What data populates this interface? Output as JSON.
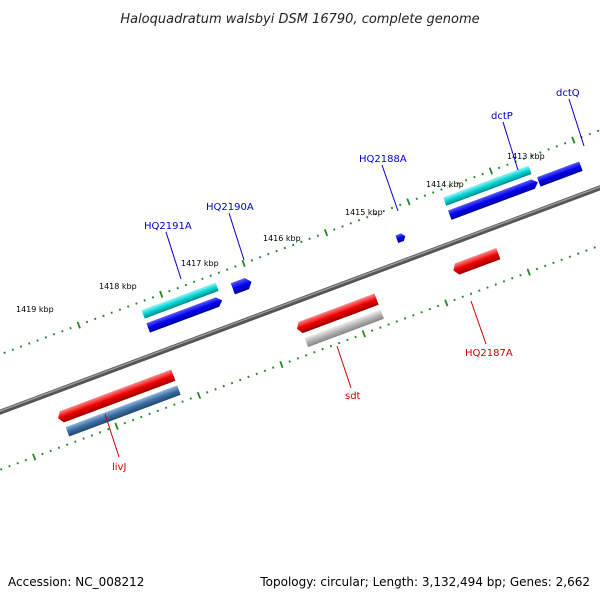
{
  "title": "Haloquadratum walsbyi DSM 16790, complete genome",
  "footer": {
    "accession": "Accession: NC_008212",
    "summary": "Topology: circular; Length: 3,132,494 bp; Genes: 2,662"
  },
  "scale_labels": [
    "1419 kbp",
    "1418 kbp",
    "1417 kbp",
    "1416 kbp",
    "1415 kbp",
    "1414 kbp",
    "1413 kbp"
  ],
  "gene_labels": {
    "forward": [
      "HQ2191A",
      "HQ2190A",
      "HQ2188A",
      "dctP",
      "dctQ"
    ],
    "reverse": [
      "livJ",
      "sdt",
      "HQ2187A"
    ]
  },
  "colors": {
    "forward_label": "#0000cc",
    "reverse_label": "#cc0000",
    "cyan_gene": "#00c8c8",
    "blue_gene": "#0000ee",
    "red_gene": "#ee0000",
    "steelblue_gene": "#3a6ea5",
    "gray_gene": "#aaaaaa",
    "backbone": "#777777",
    "tick_green": "#228822"
  }
}
